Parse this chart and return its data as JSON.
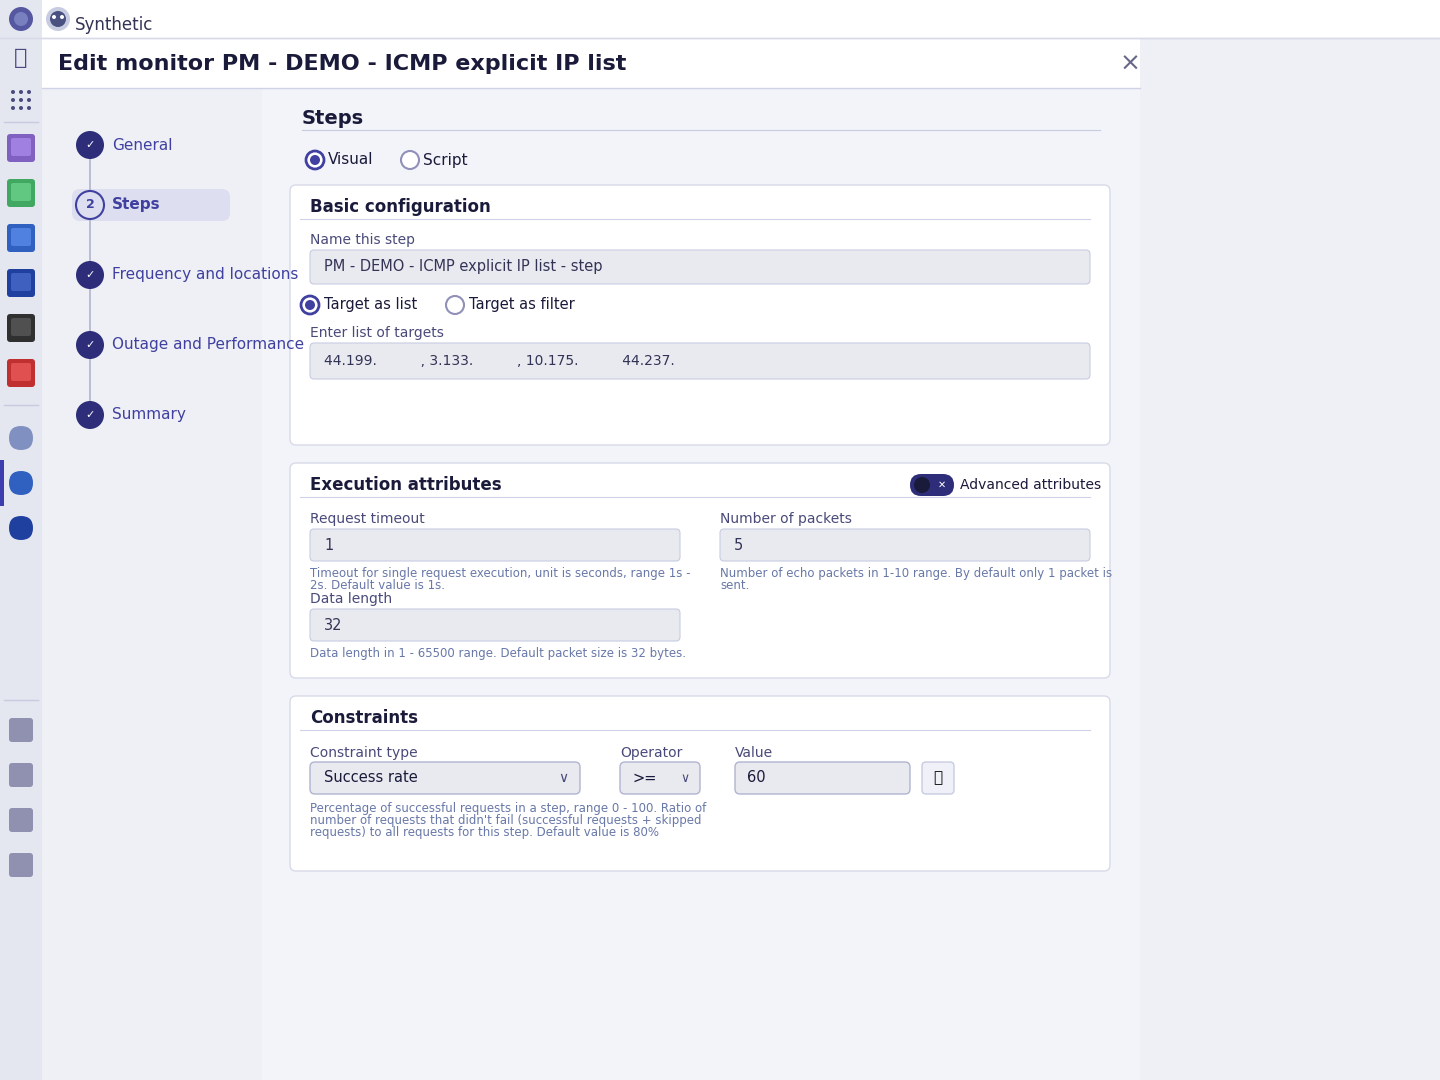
{
  "title": "Edit monitor PM - DEMO - ICMP explicit IP list",
  "bg_color": "#eef0f6",
  "white": "#ffffff",
  "card_bg": "#ffffff",
  "input_bg": "#e8eaf0",
  "sidebar_left_bg": "#e8eaf2",
  "nav_bg": "#eef0f6",
  "primary": "#2d2d7a",
  "accent": "#4040a0",
  "text_dark": "#1a1a3a",
  "text_med": "#4a4a7a",
  "text_hint": "#6878a8",
  "border": "#d0d4e8",
  "check_fill": "#2d2d7a",
  "toggle_fill": "#2d2d7a",
  "steps_pill_bg": "#dddff0",
  "synthetic_label": "Synthetic",
  "title_text": "Edit monitor PM - DEMO - ICMP explicit IP list",
  "nav_general": "General",
  "nav_steps": "Steps",
  "nav_freq": "Frequency and locations",
  "nav_outage": "Outage and Performance",
  "nav_summary": "Summary",
  "steps_heading": "Steps",
  "radio_visual": "Visual",
  "radio_script": "Script",
  "basic_config": "Basic configuration",
  "name_step_lbl": "Name this step",
  "name_step_val": "PM - DEMO - ICMP explicit IP list - step",
  "tgt_list_lbl": "Target as list",
  "tgt_filter_lbl": "Target as filter",
  "tgt_enter_lbl": "Enter list of targets",
  "tgt_val": "44.199.          , 3.133.          , 10.175.          44.237.",
  "exec_attr": "Execution attributes",
  "adv_attr": "Advanced attributes",
  "req_to_lbl": "Request timeout",
  "req_to_val": "1",
  "req_to_hint1": "Timeout for single request execution, unit is seconds, range 1s -",
  "req_to_hint2": "2s. Default value is 1s.",
  "num_pkt_lbl": "Number of packets",
  "num_pkt_val": "5",
  "num_pkt_hint1": "Number of echo packets in 1-10 range. By default only 1 packet is",
  "num_pkt_hint2": "sent.",
  "dl_lbl": "Data length",
  "dl_val": "32",
  "dl_hint": "Data length in 1 - 65500 range. Default packet size is 32 bytes.",
  "constraints": "Constraints",
  "ct_lbl": "Constraint type",
  "ct_val": "Success rate",
  "op_lbl": "Operator",
  "op_val": ">=",
  "val_lbl": "Value",
  "val_val": "60",
  "con_hint1": "Percentage of successful requests in a step, range 0 - 100. Ratio of",
  "con_hint2": "number of requests that didn't fail (successful requests + skipped",
  "con_hint3": "requests) to all requests for this step. Default value is 80%"
}
